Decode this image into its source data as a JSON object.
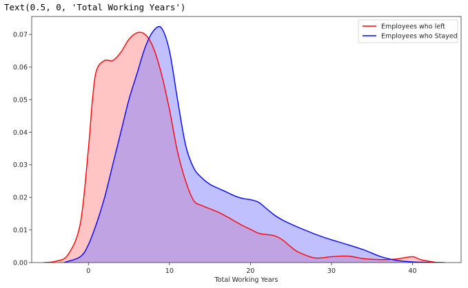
{
  "output": {
    "text": "Text(0.5, 0, 'Total Working Years')"
  },
  "chart_data": {
    "type": "area",
    "xlabel": "Total Working Years",
    "ylabel": "",
    "xlim": [
      -7,
      46
    ],
    "ylim": [
      0,
      0.0755
    ],
    "xticks": [
      0,
      10,
      20,
      30,
      40
    ],
    "yticks": [
      0.0,
      0.01,
      0.02,
      0.03,
      0.04,
      0.05,
      0.06,
      0.07
    ],
    "ytick_labels": [
      "0.00",
      "0.01",
      "0.02",
      "0.03",
      "0.04",
      "0.05",
      "0.06",
      "0.07"
    ],
    "xtick_labels": [
      "0",
      "10",
      "20",
      "30",
      "40"
    ],
    "grid": false,
    "legend_position": "top-right",
    "series": [
      {
        "name": "Employees who left",
        "color": "#ff0000",
        "fill": "#ff8c8c",
        "x": [
          -5.5,
          -4,
          -2.5,
          -1,
          0,
          0.5,
          1,
          2,
          3,
          4,
          5,
          6,
          7,
          8,
          9,
          10,
          11,
          12,
          13,
          14,
          15,
          16,
          17,
          18,
          19,
          20,
          21,
          22,
          23,
          24,
          25,
          26,
          28,
          30,
          32,
          34,
          36,
          38,
          40,
          41,
          43
        ],
        "y": [
          0.0,
          0.0004,
          0.0025,
          0.012,
          0.035,
          0.05,
          0.059,
          0.062,
          0.062,
          0.0645,
          0.0685,
          0.0705,
          0.07,
          0.066,
          0.058,
          0.047,
          0.034,
          0.025,
          0.019,
          0.0175,
          0.0165,
          0.0155,
          0.0142,
          0.0128,
          0.0114,
          0.0102,
          0.009,
          0.0086,
          0.0082,
          0.0069,
          0.0048,
          0.0031,
          0.0014,
          0.0018,
          0.002,
          0.0012,
          0.0009,
          0.0011,
          0.0018,
          0.0009,
          0.0
        ]
      },
      {
        "name": "Employees who Stayed",
        "color": "#0000ff",
        "fill": "#8282ff",
        "x": [
          -3,
          -1,
          0,
          1,
          2,
          3,
          4,
          5,
          6,
          7,
          8,
          9,
          10,
          11,
          12,
          13,
          14,
          15,
          16,
          17,
          18,
          19,
          20,
          21,
          22,
          23,
          24,
          25,
          26,
          27,
          28,
          29,
          30,
          32,
          34,
          36,
          38,
          40,
          42,
          44
        ],
        "y": [
          0.0,
          0.0018,
          0.0055,
          0.012,
          0.02,
          0.03,
          0.04,
          0.05,
          0.058,
          0.066,
          0.071,
          0.072,
          0.065,
          0.05,
          0.036,
          0.029,
          0.026,
          0.024,
          0.0228,
          0.0217,
          0.0205,
          0.0197,
          0.0193,
          0.0185,
          0.0165,
          0.0145,
          0.013,
          0.0118,
          0.0107,
          0.0097,
          0.0087,
          0.0078,
          0.007,
          0.0055,
          0.0039,
          0.0019,
          0.0007,
          0.0002,
          0.0001,
          0.0
        ]
      }
    ]
  }
}
